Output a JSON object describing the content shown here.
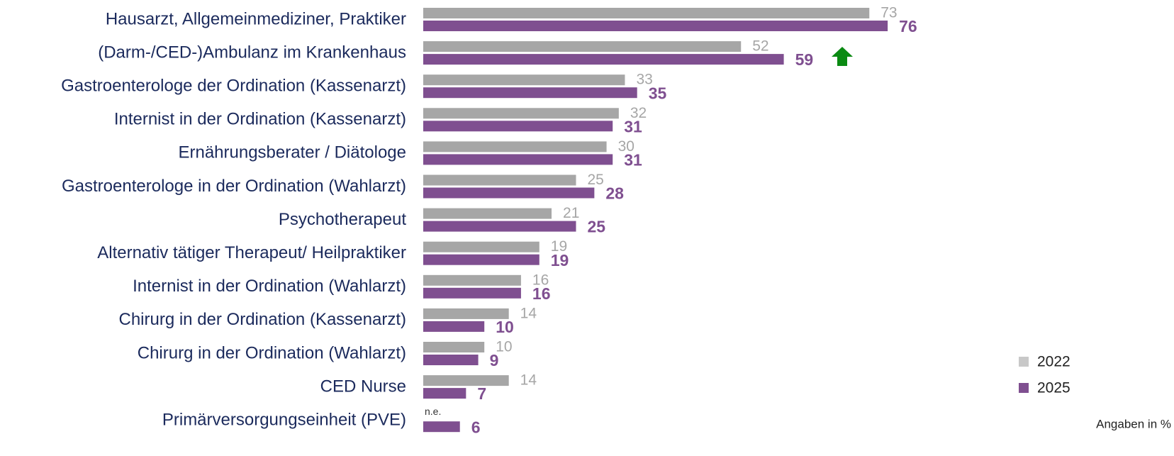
{
  "chart_data": {
    "type": "bar",
    "orientation": "horizontal",
    "categories": [
      "Hausarzt, Allgemeinmediziner, Praktiker",
      "(Darm-/CED-)Ambulanz im Krankenhaus",
      "Gastroenterologe der Ordination (Kassenarzt)",
      "Internist in der Ordination (Kassenarzt)",
      "Ernährungsberater / Diätologe",
      "Gastroenterologe in der Ordination (Wahlarzt)",
      "Psychotherapeut",
      "Alternativ tätiger Therapeut/ Heilpraktiker",
      "Internist in der Ordination (Wahlarzt)",
      "Chirurg in der Ordination (Kassenarzt)",
      "Chirurg in der Ordination (Wahlarzt)",
      "CED Nurse",
      "Primärversorgungseinheit (PVE)"
    ],
    "series": [
      {
        "name": "2022",
        "color": "#a6a6a6",
        "values": [
          73,
          52,
          33,
          32,
          30,
          25,
          21,
          19,
          16,
          14,
          10,
          14,
          null
        ],
        "value_labels": [
          "73",
          "52",
          "33",
          "32",
          "30",
          "25",
          "21",
          "19",
          "16",
          "14",
          "10",
          "14",
          "n.e."
        ]
      },
      {
        "name": "2025",
        "color": "#7f4f90",
        "values": [
          76,
          59,
          35,
          31,
          31,
          28,
          25,
          19,
          16,
          10,
          9,
          7,
          6
        ]
      }
    ],
    "xlim": [
      0,
      100
    ],
    "note": "Angaben in %"
  }
}
